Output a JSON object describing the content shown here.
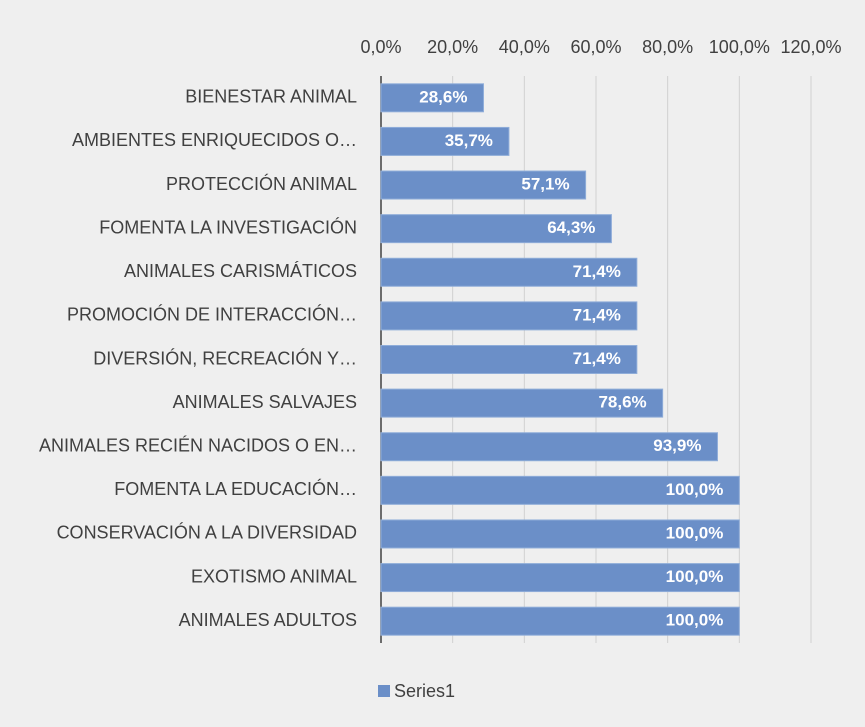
{
  "chart_data": {
    "type": "bar",
    "orientation": "horizontal",
    "categories": [
      "BIENESTAR ANIMAL",
      "AMBIENTES ENRIQUECIDOS O…",
      "PROTECCIÓN ANIMAL",
      "FOMENTA LA INVESTIGACIÓN",
      "ANIMALES CARISMÁTICOS",
      "PROMOCIÓN DE INTERACCIÓN…",
      "DIVERSIÓN, RECREACIÓN Y…",
      "ANIMALES SALVAJES",
      "ANIMALES RECIÉN NACIDOS O EN…",
      "FOMENTA LA EDUCACIÓN…",
      "CONSERVACIÓN A LA DIVERSIDAD",
      "EXOTISMO ANIMAL",
      "ANIMALES ADULTOS"
    ],
    "series": [
      {
        "name": "Series1",
        "color": "#6b8fc8",
        "values": [
          28.6,
          35.7,
          57.1,
          64.3,
          71.4,
          71.4,
          71.4,
          78.6,
          93.9,
          100,
          100,
          100,
          100
        ],
        "value_labels": [
          "28,6%",
          "35,7%",
          "57,1%",
          "64,3%",
          "71,4%",
          "71,4%",
          "71,4%",
          "78,6%",
          "93,9%",
          "100,0%",
          "100,0%",
          "100,0%",
          "100,0%"
        ]
      }
    ],
    "xlim": [
      0,
      120
    ],
    "xticks": [
      {
        "value": 0,
        "label": "0,0%"
      },
      {
        "value": 20,
        "label": "20,0%"
      },
      {
        "value": 40,
        "label": "40,0%"
      },
      {
        "value": 60,
        "label": "60,0%"
      },
      {
        "value": 80,
        "label": "80,0%"
      },
      {
        "value": 100,
        "label": "100,0%"
      },
      {
        "value": 120,
        "label": "120,0%"
      }
    ],
    "grid": true,
    "legend": "bottom"
  }
}
